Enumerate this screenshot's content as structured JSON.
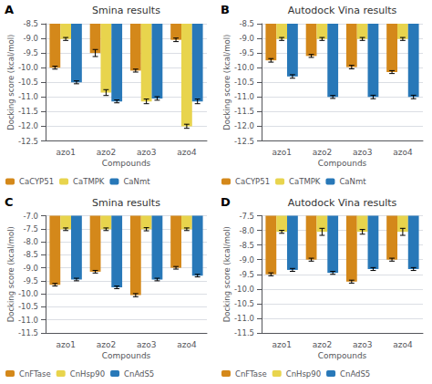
{
  "chart_data": [
    {
      "type": "bar",
      "title": "Smina results",
      "xlabel": "Compounds",
      "ylabel": "Docking score (kcal/mol)",
      "annotations": [
        "A"
      ],
      "categories": [
        "azo1",
        "azo2",
        "azo3",
        "azo4"
      ],
      "series": [
        {
          "name": "CaCYP51",
          "color": "#D4881A",
          "values": [
            -10.0,
            -9.5,
            -10.1,
            -9.05
          ],
          "errors": [
            0.05,
            0.12,
            0.05,
            0.06
          ]
        },
        {
          "name": "CaTMPK",
          "color": "#E8D44D",
          "values": [
            -9.02,
            -10.85,
            -11.15,
            -12.0
          ],
          "errors": [
            0.05,
            0.1,
            0.08,
            0.07
          ]
        },
        {
          "name": "CaNmt",
          "color": "#2878B8",
          "values": [
            -10.5,
            -11.15,
            -11.05,
            -11.15
          ],
          "errors": [
            0.05,
            0.05,
            0.06,
            0.08
          ]
        }
      ],
      "ylim": [
        -12.5,
        -8.5
      ],
      "yticks": [
        -8.5,
        {
          "value": -9.0,
          "label": "-9.0"
        },
        -9.5,
        {
          "value": -10.0,
          "label": "-10.0"
        },
        -10.5,
        {
          "value": -11.0,
          "label": "-11.0"
        },
        -11.5,
        {
          "value": -12.0,
          "label": "-12.0"
        },
        -12.5
      ],
      "grid": true,
      "legend": "lower left"
    },
    {
      "type": "bar",
      "title": "Autodock Vina results",
      "xlabel": "Compounds",
      "ylabel": "Docking score (kcal/mol)",
      "annotations": [
        "B"
      ],
      "categories": [
        "azo1",
        "azo2",
        "azo3",
        "azo4"
      ],
      "series": [
        {
          "name": "CaCYP51",
          "color": "#D4881A",
          "values": [
            -9.75,
            -9.6,
            -9.98,
            -10.15
          ],
          "errors": [
            0.06,
            0.05,
            0.06,
            0.05
          ]
        },
        {
          "name": "CaTMPK",
          "color": "#E8D44D",
          "values": [
            -9.02,
            -9.02,
            -9.02,
            -9.02
          ],
          "errors": [
            0.05,
            0.05,
            0.05,
            0.05
          ]
        },
        {
          "name": "CaNmt",
          "color": "#2878B8",
          "values": [
            -10.3,
            -11.0,
            -11.0,
            -11.0
          ],
          "errors": [
            0.06,
            0.05,
            0.06,
            0.06
          ]
        }
      ],
      "ylim": [
        -12.5,
        -8.5
      ],
      "yticks": [
        -8.5,
        {
          "value": -9.0,
          "label": "-9.0"
        },
        -9.5,
        {
          "value": -10.0,
          "label": "-10.0"
        },
        -10.5,
        {
          "value": -11.0,
          "label": "-11.0"
        },
        -11.5,
        {
          "value": -12.0,
          "label": "-12.0"
        },
        -12.5
      ],
      "grid": true,
      "legend": "lower left"
    },
    {
      "type": "bar",
      "title": "Smina results",
      "xlabel": "Compounds",
      "ylabel": "Docking score (kcal/mol)",
      "annotations": [
        "C"
      ],
      "categories": [
        "azo1",
        "azo2",
        "azo3",
        "azo4"
      ],
      "series": [
        {
          "name": "CnFTase",
          "color": "#D4881A",
          "values": [
            -9.65,
            -9.15,
            -10.05,
            -9.0
          ],
          "errors": [
            0.05,
            0.05,
            0.06,
            0.05
          ]
        },
        {
          "name": "CnHsp90",
          "color": "#E8D44D",
          "values": [
            -7.52,
            -7.52,
            -7.52,
            -7.52
          ],
          "errors": [
            0.05,
            0.05,
            0.06,
            0.05
          ]
        },
        {
          "name": "CnAdS5",
          "color": "#2878B8",
          "values": [
            -9.45,
            -9.75,
            -9.45,
            -9.3
          ],
          "errors": [
            0.05,
            0.05,
            0.05,
            0.05
          ]
        }
      ],
      "ylim": [
        -11.5,
        -7.0
      ],
      "yticks": [
        {
          "value": -7.0,
          "label": "-7.0"
        },
        -7.5,
        {
          "value": -8.0,
          "label": "-8.0"
        },
        -8.5,
        {
          "value": -9.0,
          "label": "-9.0"
        },
        -9.5,
        {
          "value": -10.0,
          "label": "-10.0"
        },
        -10.5,
        {
          "value": -11.0,
          "label": "-11.0"
        },
        -11.5
      ],
      "grid": true,
      "legend": "lower left"
    },
    {
      "type": "bar",
      "title": "Autodock Vina results",
      "xlabel": "Compounds",
      "ylabel": "Docking score (kcal/mol)",
      "annotations": [
        "D"
      ],
      "categories": [
        "azo1",
        "azo2",
        "azo3",
        "azo4"
      ],
      "series": [
        {
          "name": "CnFTase",
          "color": "#D4881A",
          "values": [
            -9.5,
            -9.0,
            -9.75,
            -9.0
          ],
          "errors": [
            0.05,
            0.05,
            0.05,
            0.05
          ]
        },
        {
          "name": "CnHsp90",
          "color": "#E8D44D",
          "values": [
            -8.05,
            -8.05,
            -8.05,
            -8.05
          ],
          "errors": [
            0.05,
            0.12,
            0.08,
            0.12
          ]
        },
        {
          "name": "CnAdS5",
          "color": "#2878B8",
          "values": [
            -9.35,
            -9.45,
            -9.32,
            -9.32
          ],
          "errors": [
            0.05,
            0.05,
            0.05,
            0.05
          ]
        }
      ],
      "ylim": [
        -11.5,
        -7.5
      ],
      "yticks": [
        -7.5,
        {
          "value": -8.0,
          "label": "-8.0"
        },
        -8.5,
        {
          "value": -9.0,
          "label": "-9.0"
        },
        -9.5,
        {
          "value": -10.0,
          "label": "-10.0"
        },
        -10.5,
        {
          "value": -11.0,
          "label": "-11.0"
        },
        -11.5
      ],
      "grid": true,
      "legend": "lower left"
    }
  ]
}
